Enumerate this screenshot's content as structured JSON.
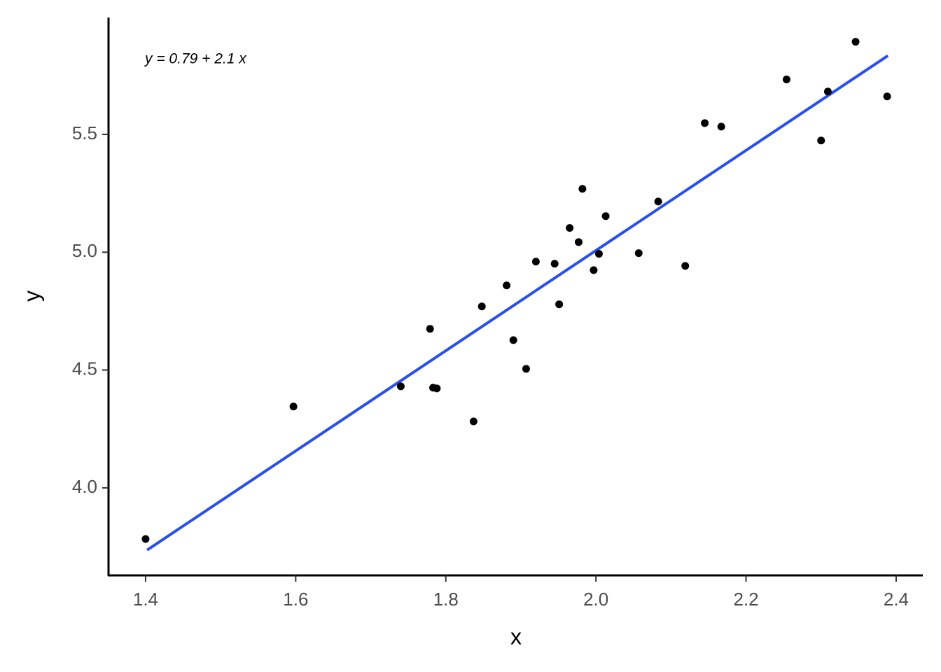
{
  "chart_data": {
    "type": "scatter",
    "x_label": "x",
    "y_label": "y",
    "annotation": "y = 0.79 + 2.1 x",
    "xlim": [
      1.3506,
      2.4355
    ],
    "ylim": [
      3.6285,
      5.996
    ],
    "xticks": [
      1.4,
      1.6,
      1.8,
      {
        "value": 2,
        "label": "2.0"
      },
      2.2,
      2.4
    ],
    "yticks": [
      {
        "value": 4,
        "label": "4.0"
      },
      4.5,
      {
        "value": 5,
        "label": "5.0"
      },
      5.5
    ],
    "grid": false,
    "series": [
      {
        "color": "#000000",
        "x": [
          1.4,
          1.597,
          1.74,
          1.779,
          1.783,
          1.788,
          1.837,
          1.848,
          1.881,
          1.89,
          1.907,
          1.92,
          1.945,
          1.951,
          1.965,
          1.977,
          1.982,
          1.997,
          2.004,
          2.013,
          2.057,
          2.083,
          2.119,
          2.145,
          2.167,
          2.254,
          2.3,
          2.309,
          2.346,
          2.388
        ],
        "values": [
          3.783,
          4.345,
          4.431,
          4.675,
          4.425,
          4.422,
          4.282,
          4.77,
          4.859,
          4.627,
          4.505,
          4.96,
          4.951,
          4.779,
          5.103,
          5.043,
          5.269,
          4.924,
          4.993,
          5.153,
          4.996,
          5.215,
          4.942,
          5.548,
          5.533,
          5.733,
          5.474,
          5.682,
          5.893,
          5.661
        ]
      }
    ],
    "fit": {
      "color": "#2a4ef0",
      "x": [
        1.402,
        2.389
      ],
      "values": [
        3.736,
        5.834
      ]
    }
  }
}
